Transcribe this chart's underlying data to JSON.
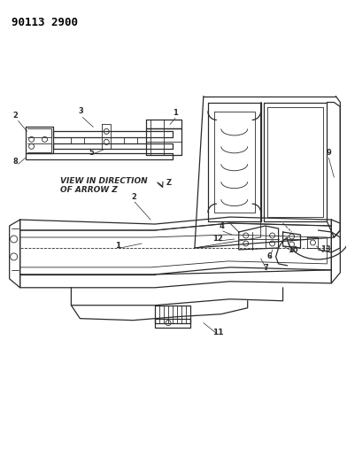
{
  "title": "90113 2900",
  "bg_color": "#ffffff",
  "line_color": "#2a2a2a",
  "text_color": "#000000",
  "fig_width": 3.92,
  "fig_height": 5.33,
  "dpi": 100,
  "view_label_line1": "VIEW IN DIRECTION",
  "view_label_line2": "OF ARROW Z"
}
